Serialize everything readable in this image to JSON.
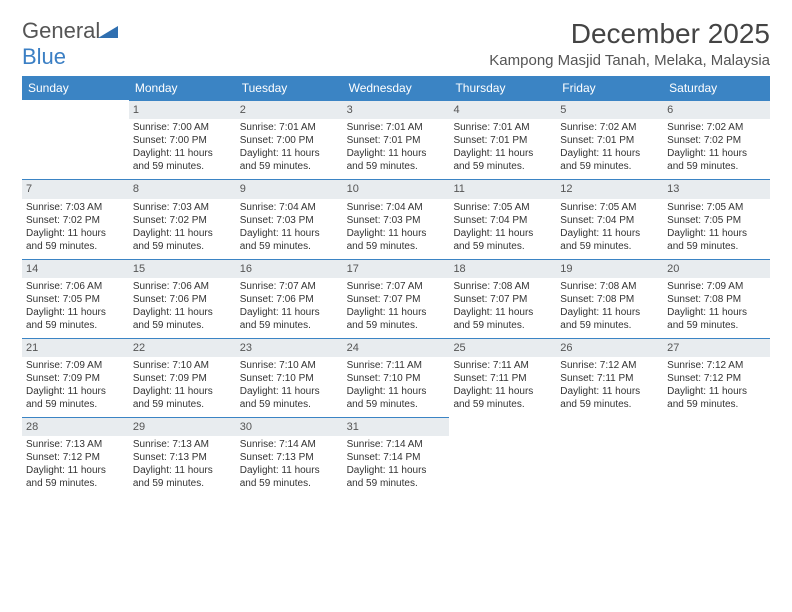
{
  "logo": {
    "text1": "General",
    "text2": "Blue"
  },
  "title": "December 2025",
  "location": "Kampong Masjid Tanah, Melaka, Malaysia",
  "colors": {
    "header_bg": "#3b84c4",
    "daynum_bg": "#e8ecef",
    "border": "#3b84c4"
  },
  "weekdays": [
    "Sunday",
    "Monday",
    "Tuesday",
    "Wednesday",
    "Thursday",
    "Friday",
    "Saturday"
  ],
  "weeks": [
    [
      null,
      {
        "n": "1",
        "sr": "Sunrise: 7:00 AM",
        "ss": "Sunset: 7:00 PM",
        "d1": "Daylight: 11 hours",
        "d2": "and 59 minutes."
      },
      {
        "n": "2",
        "sr": "Sunrise: 7:01 AM",
        "ss": "Sunset: 7:00 PM",
        "d1": "Daylight: 11 hours",
        "d2": "and 59 minutes."
      },
      {
        "n": "3",
        "sr": "Sunrise: 7:01 AM",
        "ss": "Sunset: 7:01 PM",
        "d1": "Daylight: 11 hours",
        "d2": "and 59 minutes."
      },
      {
        "n": "4",
        "sr": "Sunrise: 7:01 AM",
        "ss": "Sunset: 7:01 PM",
        "d1": "Daylight: 11 hours",
        "d2": "and 59 minutes."
      },
      {
        "n": "5",
        "sr": "Sunrise: 7:02 AM",
        "ss": "Sunset: 7:01 PM",
        "d1": "Daylight: 11 hours",
        "d2": "and 59 minutes."
      },
      {
        "n": "6",
        "sr": "Sunrise: 7:02 AM",
        "ss": "Sunset: 7:02 PM",
        "d1": "Daylight: 11 hours",
        "d2": "and 59 minutes."
      }
    ],
    [
      {
        "n": "7",
        "sr": "Sunrise: 7:03 AM",
        "ss": "Sunset: 7:02 PM",
        "d1": "Daylight: 11 hours",
        "d2": "and 59 minutes."
      },
      {
        "n": "8",
        "sr": "Sunrise: 7:03 AM",
        "ss": "Sunset: 7:02 PM",
        "d1": "Daylight: 11 hours",
        "d2": "and 59 minutes."
      },
      {
        "n": "9",
        "sr": "Sunrise: 7:04 AM",
        "ss": "Sunset: 7:03 PM",
        "d1": "Daylight: 11 hours",
        "d2": "and 59 minutes."
      },
      {
        "n": "10",
        "sr": "Sunrise: 7:04 AM",
        "ss": "Sunset: 7:03 PM",
        "d1": "Daylight: 11 hours",
        "d2": "and 59 minutes."
      },
      {
        "n": "11",
        "sr": "Sunrise: 7:05 AM",
        "ss": "Sunset: 7:04 PM",
        "d1": "Daylight: 11 hours",
        "d2": "and 59 minutes."
      },
      {
        "n": "12",
        "sr": "Sunrise: 7:05 AM",
        "ss": "Sunset: 7:04 PM",
        "d1": "Daylight: 11 hours",
        "d2": "and 59 minutes."
      },
      {
        "n": "13",
        "sr": "Sunrise: 7:05 AM",
        "ss": "Sunset: 7:05 PM",
        "d1": "Daylight: 11 hours",
        "d2": "and 59 minutes."
      }
    ],
    [
      {
        "n": "14",
        "sr": "Sunrise: 7:06 AM",
        "ss": "Sunset: 7:05 PM",
        "d1": "Daylight: 11 hours",
        "d2": "and 59 minutes."
      },
      {
        "n": "15",
        "sr": "Sunrise: 7:06 AM",
        "ss": "Sunset: 7:06 PM",
        "d1": "Daylight: 11 hours",
        "d2": "and 59 minutes."
      },
      {
        "n": "16",
        "sr": "Sunrise: 7:07 AM",
        "ss": "Sunset: 7:06 PM",
        "d1": "Daylight: 11 hours",
        "d2": "and 59 minutes."
      },
      {
        "n": "17",
        "sr": "Sunrise: 7:07 AM",
        "ss": "Sunset: 7:07 PM",
        "d1": "Daylight: 11 hours",
        "d2": "and 59 minutes."
      },
      {
        "n": "18",
        "sr": "Sunrise: 7:08 AM",
        "ss": "Sunset: 7:07 PM",
        "d1": "Daylight: 11 hours",
        "d2": "and 59 minutes."
      },
      {
        "n": "19",
        "sr": "Sunrise: 7:08 AM",
        "ss": "Sunset: 7:08 PM",
        "d1": "Daylight: 11 hours",
        "d2": "and 59 minutes."
      },
      {
        "n": "20",
        "sr": "Sunrise: 7:09 AM",
        "ss": "Sunset: 7:08 PM",
        "d1": "Daylight: 11 hours",
        "d2": "and 59 minutes."
      }
    ],
    [
      {
        "n": "21",
        "sr": "Sunrise: 7:09 AM",
        "ss": "Sunset: 7:09 PM",
        "d1": "Daylight: 11 hours",
        "d2": "and 59 minutes."
      },
      {
        "n": "22",
        "sr": "Sunrise: 7:10 AM",
        "ss": "Sunset: 7:09 PM",
        "d1": "Daylight: 11 hours",
        "d2": "and 59 minutes."
      },
      {
        "n": "23",
        "sr": "Sunrise: 7:10 AM",
        "ss": "Sunset: 7:10 PM",
        "d1": "Daylight: 11 hours",
        "d2": "and 59 minutes."
      },
      {
        "n": "24",
        "sr": "Sunrise: 7:11 AM",
        "ss": "Sunset: 7:10 PM",
        "d1": "Daylight: 11 hours",
        "d2": "and 59 minutes."
      },
      {
        "n": "25",
        "sr": "Sunrise: 7:11 AM",
        "ss": "Sunset: 7:11 PM",
        "d1": "Daylight: 11 hours",
        "d2": "and 59 minutes."
      },
      {
        "n": "26",
        "sr": "Sunrise: 7:12 AM",
        "ss": "Sunset: 7:11 PM",
        "d1": "Daylight: 11 hours",
        "d2": "and 59 minutes."
      },
      {
        "n": "27",
        "sr": "Sunrise: 7:12 AM",
        "ss": "Sunset: 7:12 PM",
        "d1": "Daylight: 11 hours",
        "d2": "and 59 minutes."
      }
    ],
    [
      {
        "n": "28",
        "sr": "Sunrise: 7:13 AM",
        "ss": "Sunset: 7:12 PM",
        "d1": "Daylight: 11 hours",
        "d2": "and 59 minutes."
      },
      {
        "n": "29",
        "sr": "Sunrise: 7:13 AM",
        "ss": "Sunset: 7:13 PM",
        "d1": "Daylight: 11 hours",
        "d2": "and 59 minutes."
      },
      {
        "n": "30",
        "sr": "Sunrise: 7:14 AM",
        "ss": "Sunset: 7:13 PM",
        "d1": "Daylight: 11 hours",
        "d2": "and 59 minutes."
      },
      {
        "n": "31",
        "sr": "Sunrise: 7:14 AM",
        "ss": "Sunset: 7:14 PM",
        "d1": "Daylight: 11 hours",
        "d2": "and 59 minutes."
      },
      null,
      null,
      null
    ]
  ]
}
